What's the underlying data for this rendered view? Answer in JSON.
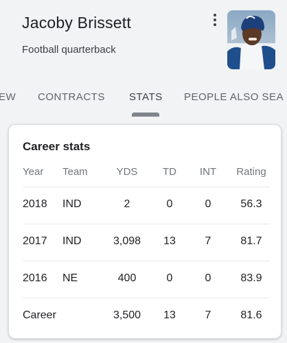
{
  "header": {
    "title": "Jacoby Brissett",
    "subtitle": "Football quarterback",
    "menu_icon": "more-vert-icon"
  },
  "tabs": [
    {
      "label": "EW"
    },
    {
      "label": "CONTRACTS"
    },
    {
      "label": "STATS",
      "active": true
    },
    {
      "label": "PEOPLE ALSO SEA"
    }
  ],
  "stats": {
    "title": "Career stats",
    "columns": [
      "Year",
      "Team",
      "YDS",
      "TD",
      "INT",
      "Rating"
    ],
    "rows": [
      {
        "year": "2018",
        "team": "IND",
        "yds": "2",
        "td": "0",
        "int": "0",
        "rating": "56.3"
      },
      {
        "year": "2017",
        "team": "IND",
        "yds": "3,098",
        "td": "13",
        "int": "7",
        "rating": "81.7"
      },
      {
        "year": "2016",
        "team": "NE",
        "yds": "400",
        "td": "0",
        "int": "0",
        "rating": "83.9"
      },
      {
        "year": "Career",
        "team": "",
        "yds": "3,500",
        "td": "13",
        "int": "7",
        "rating": "81.6"
      }
    ]
  },
  "colors": {
    "background": "#f1f3f4",
    "link": "#1967d2",
    "text": "#202124",
    "muted": "#70757a"
  }
}
